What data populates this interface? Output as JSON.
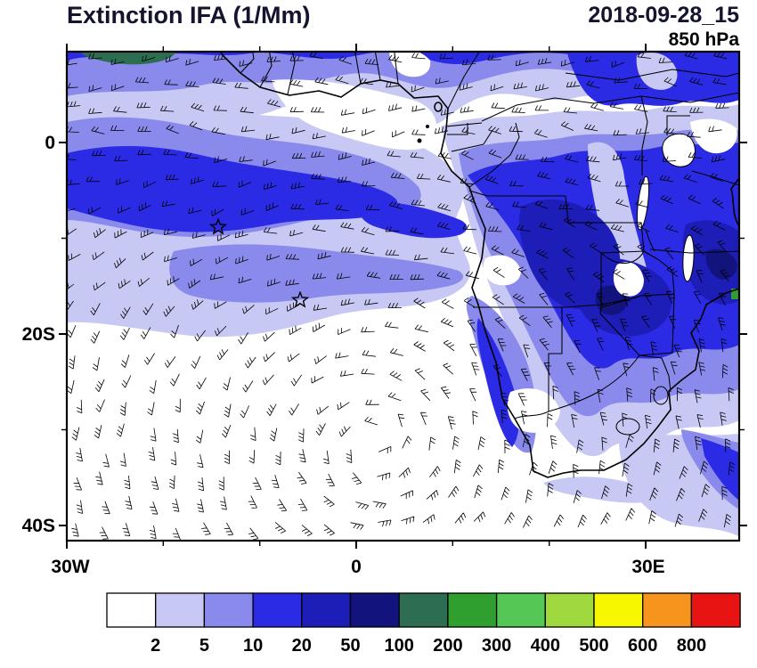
{
  "header": {
    "title": "Extinction IFA (1/Mm)",
    "datetime": "2018-09-28_15",
    "level": "850 hPa"
  },
  "map": {
    "x_tick_labels": [
      "30W",
      "0",
      "30E"
    ],
    "y_tick_labels": [
      "0",
      "20S",
      "40S"
    ],
    "star_marker_count": 2,
    "palette": {
      "background": "#FFFFFF",
      "fill_light": "#C8C8F4",
      "fill_medium": "#8A8AEC",
      "fill_strong": "#2B2BE6",
      "fill_deep": "#1D1DB8",
      "fill_navy": "#13137E",
      "fill_teal": "#2D6E53",
      "fill_green": "#2FA02F",
      "coast_color": "#000000",
      "barb_color": "#000000"
    }
  },
  "colorbar": {
    "box_colors": [
      "#FFFFFF",
      "#C8C8F4",
      "#8A8AEC",
      "#2B2BE6",
      "#1D1DB8",
      "#13137E",
      "#2D6E53",
      "#2FA02F",
      "#54C754",
      "#A0D93E",
      "#F7F700",
      "#F7941E",
      "#E81414"
    ],
    "tick_labels": [
      "2",
      "5",
      "10",
      "20",
      "50",
      "100",
      "200",
      "300",
      "400",
      "500",
      "600",
      "800"
    ]
  },
  "chart_data": {
    "type": "heatmap",
    "title": "Extinction IFA (1/Mm)",
    "datetime": "2018-09-28_15",
    "level": "850 hPa",
    "x_ticks": [
      "30W",
      "0",
      "30E"
    ],
    "y_ticks": [
      "0",
      "20S",
      "40S"
    ],
    "contour_levels": [
      2,
      5,
      10,
      20,
      50,
      100,
      200,
      300,
      400,
      500,
      600,
      800
    ],
    "legend_position": "bottom"
  }
}
